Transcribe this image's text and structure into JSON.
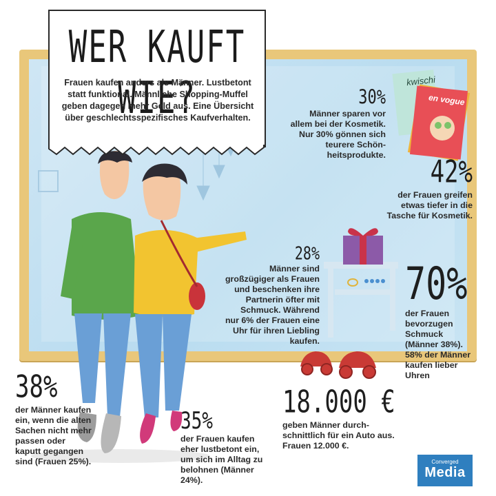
{
  "title": "WER KAUFT WIE?",
  "intro": "Frauen kaufen anders als Männer. Lustbetont statt funktional. Männliche Shopping-Muffel geben dagegen mehr Geld aus. Eine Übersicht über geschlechtsspezifisches Kaufverhalten.",
  "magazines": {
    "back": "kwischi",
    "front": "en vogue"
  },
  "stats": {
    "cosmetics_men": {
      "value": "30%",
      "text": "Männer sparen vor allem bei der Kosmetik. Nur 30% gönnen sich teurere Schön-heitsprodukte."
    },
    "cosmetics_women": {
      "value": "42%",
      "text": "der Frauen greifen etwas tiefer in die Tasche für Kosmetik."
    },
    "gifts_men": {
      "value": "28%",
      "text": "Männer sind großzügiger als Frauen und beschenken ihre Partnerin öfter mit Schmuck. Während nur 6% der Frauen eine Uhr für ihren Liebling kaufen."
    },
    "jewelry_women": {
      "value": "70%",
      "text": "der Frauen bevorzugen Schmuck (Männer 38%). 58% der Männer kaufen lieber Uhren"
    },
    "replace_men": {
      "value": "38%",
      "text": "der Männer kaufen ein, wenn die alten Sachen nicht mehr passen oder kaputt gegangen sind (Frauen 25%)."
    },
    "reward_women": {
      "value": "35%",
      "text": "der Frauen kaufen eher lustbetont ein, um sich im Alltag zu belohnen (Männer 24%)."
    },
    "car": {
      "value": "18.000 €",
      "text": "geben Männer durch-schnittlich für ein Auto aus. Frauen 12.000 €."
    }
  },
  "logo": {
    "line1": "Converged",
    "line2": "Media"
  },
  "colors": {
    "frame": "#e9c77a",
    "glass": "#bfe0f2",
    "man_shirt": "#5aa64b",
    "woman_shirt": "#f2c430",
    "jeans": "#6a9fd6",
    "logo": "#2f7fbf",
    "gift": "#8c5aa8",
    "car": "#c93a35"
  }
}
